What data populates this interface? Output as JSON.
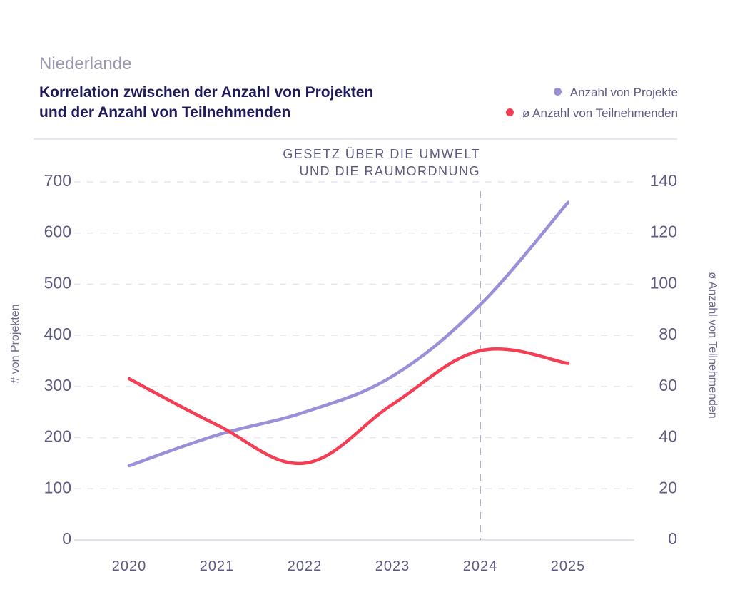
{
  "header": {
    "subtitle": "Niederlande",
    "title_line1": "Korrelation zwischen der Anzahl von Projekten",
    "title_line2": "und der Anzahl von Teilnehmenden"
  },
  "legend": [
    {
      "label": "Anzahl von Projekte",
      "color": "#9a8fd8"
    },
    {
      "label": "ø Anzahl von Teilnehmenden",
      "color": "#f53d54"
    }
  ],
  "chart_data": {
    "type": "line",
    "title": "Korrelation zwischen der Anzahl von Projekten und der Anzahl von Teilnehmenden",
    "subtitle": "Niederlande",
    "categories": [
      "2020",
      "2021",
      "2022",
      "2023",
      "2024",
      "2025"
    ],
    "xlabel": "",
    "ylabel": "# von Projekten",
    "y2label": "ø Anzahl von Teilnehmenden",
    "ylim": [
      0,
      700
    ],
    "y2lim": [
      0,
      140
    ],
    "yticks": [
      "0",
      "100",
      "200",
      "300",
      "400",
      "500",
      "600",
      "700"
    ],
    "y2ticks": [
      "0",
      "20",
      "40",
      "60",
      "80",
      "100",
      "120",
      "140"
    ],
    "grid": true,
    "legend_position": "top-right",
    "series": [
      {
        "name": "Anzahl von Projekte",
        "axis": "left",
        "color": "#9a8fd8",
        "values": [
          145,
          205,
          250,
          320,
          460,
          660
        ]
      },
      {
        "name": "ø Anzahl von Teilnehmenden",
        "axis": "right",
        "color": "#f53d54",
        "values": [
          63,
          45,
          30,
          53,
          74,
          69
        ]
      }
    ],
    "annotation": {
      "x": "2024",
      "lines": [
        "GESETZ ÜBER DIE UMWELT",
        "UND DIE RAUMORDNUNG"
      ]
    }
  }
}
